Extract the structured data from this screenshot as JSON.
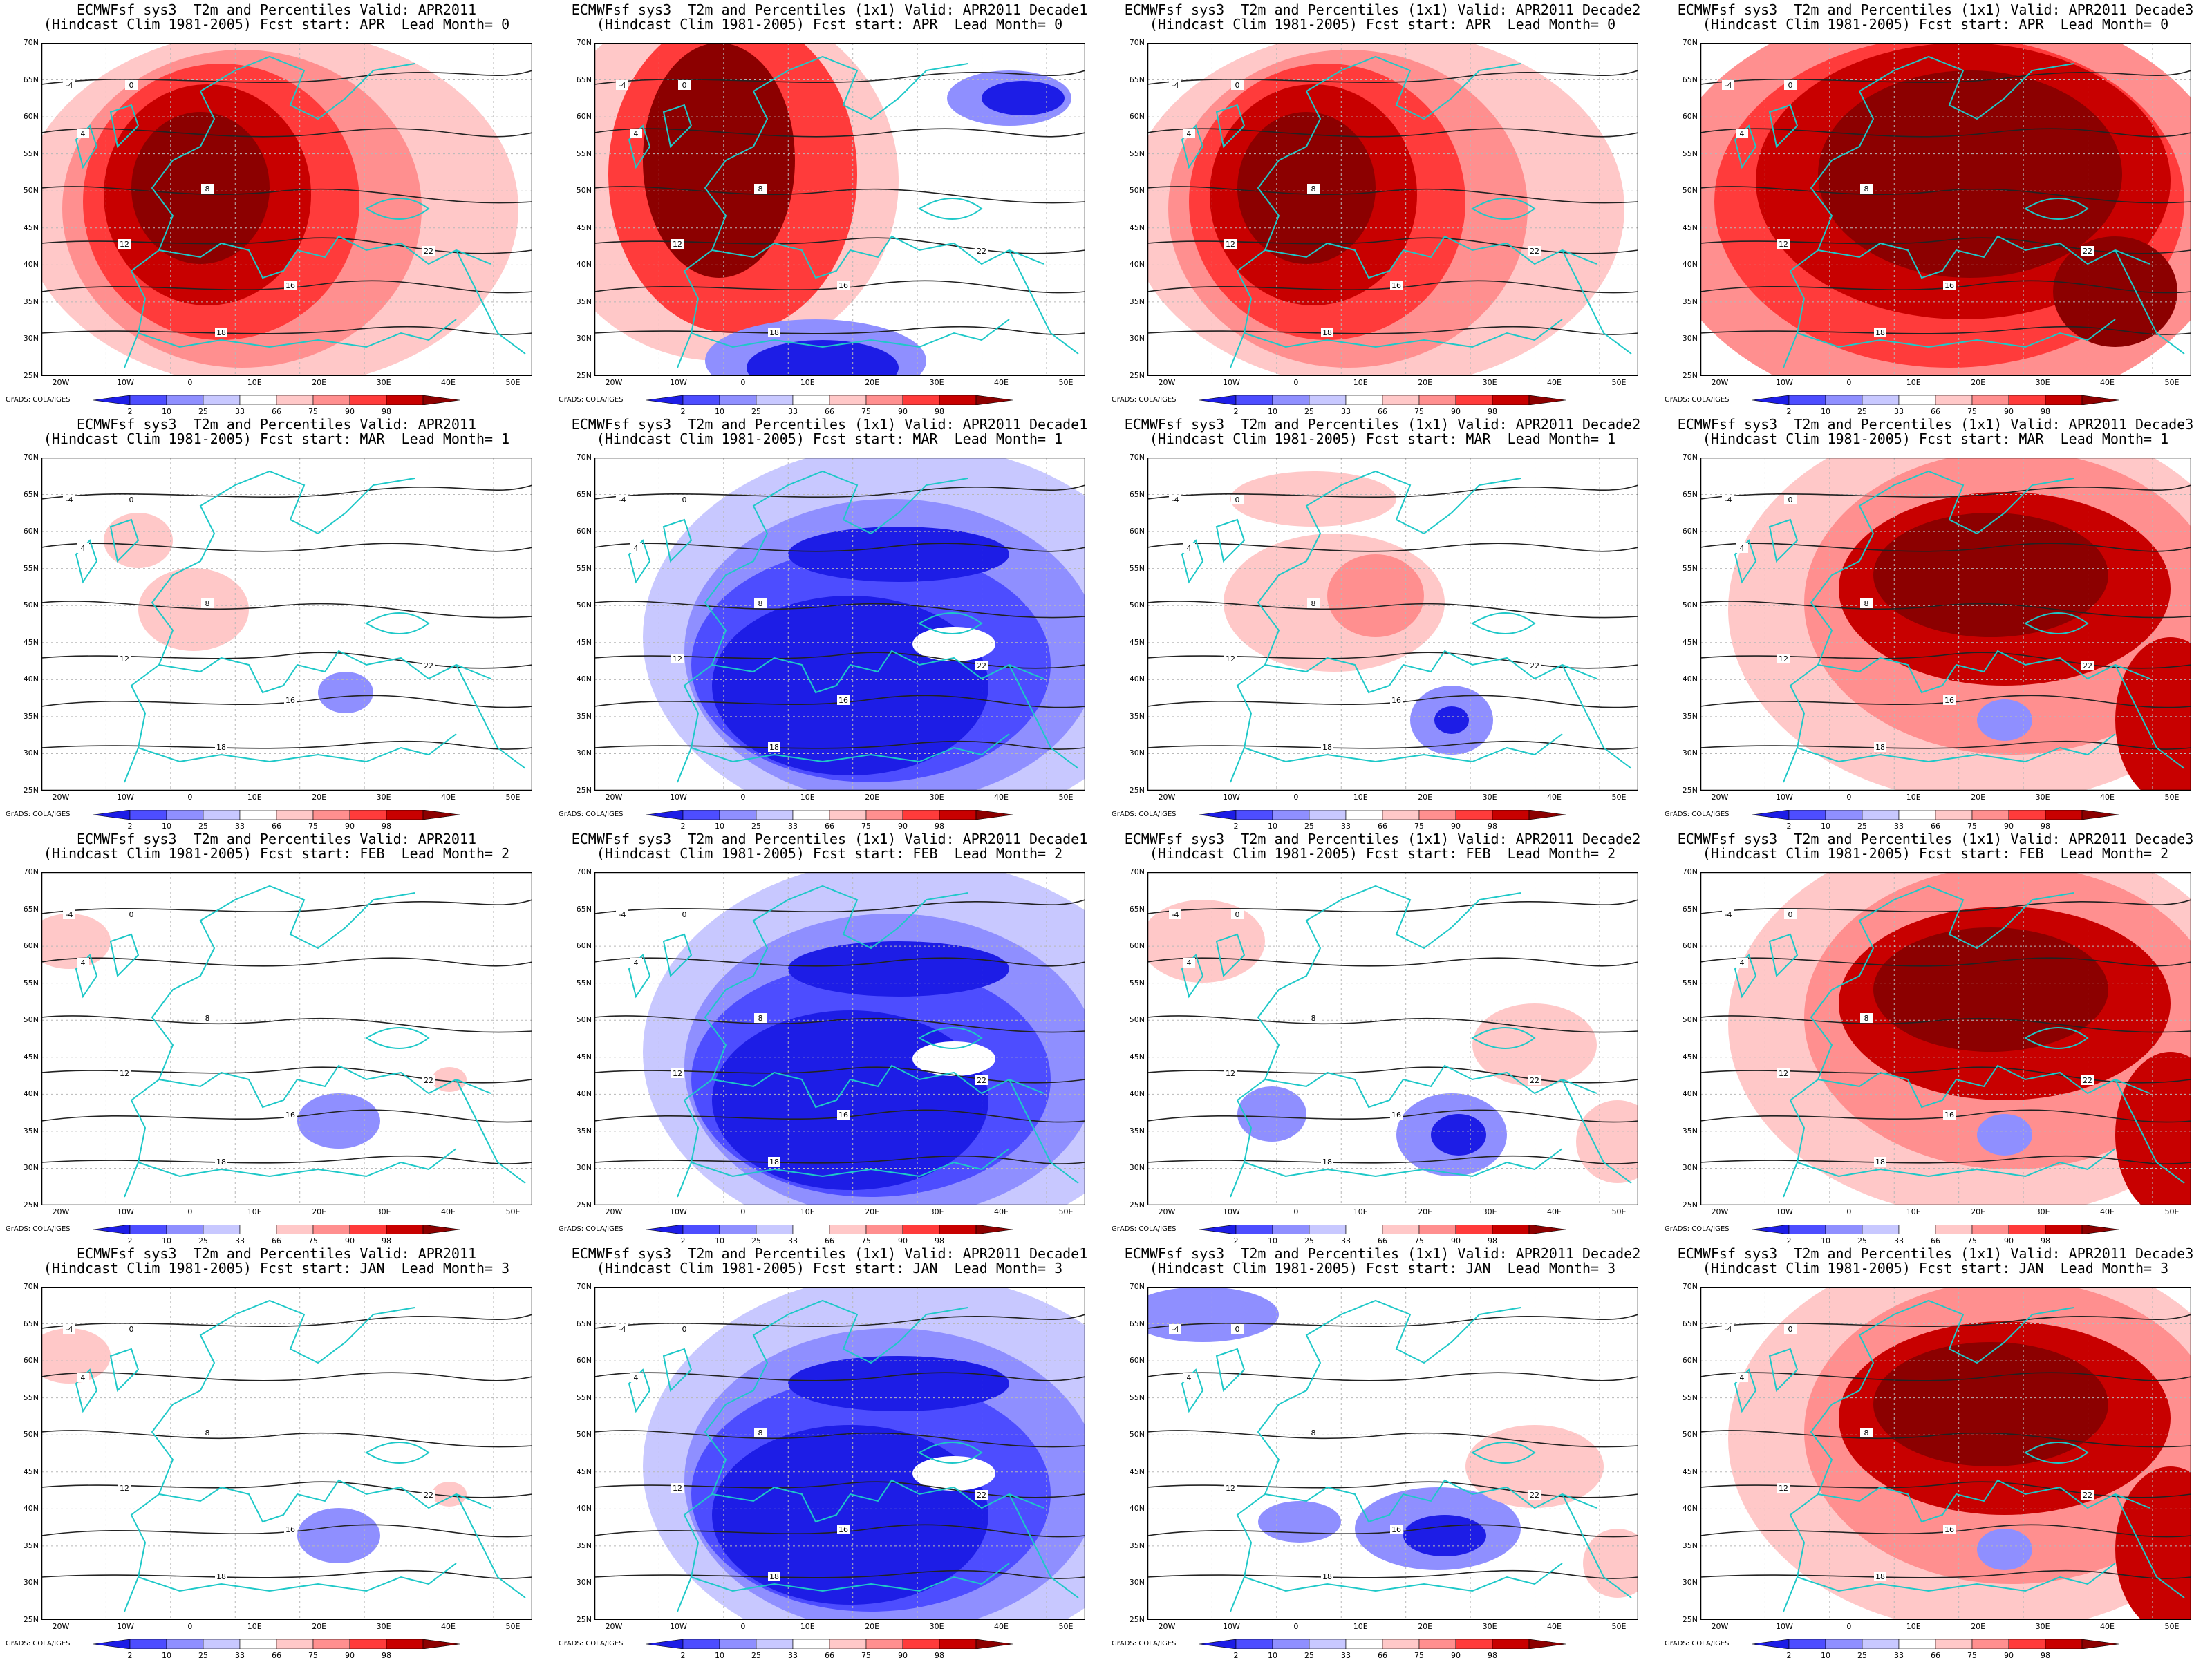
{
  "colorbar": {
    "ticks": [
      "2",
      "10",
      "25",
      "33",
      "66",
      "75",
      "90",
      "98"
    ],
    "colors": [
      "#1d1de6",
      "#4d4dff",
      "#8f8fff",
      "#c8c8ff",
      "#ffffff",
      "#ffc8c8",
      "#ff8f8f",
      "#ff3b3b",
      "#c80000",
      "#8c0000"
    ]
  },
  "credit": "GrADS: COLA/IGES",
  "lat_labels": [
    "70N",
    "65N",
    "60N",
    "55N",
    "50N",
    "45N",
    "40N",
    "35N",
    "30N",
    "25N"
  ],
  "lon_labels": [
    "20W",
    "10W",
    "0",
    "10E",
    "20E",
    "30E",
    "40E",
    "50E"
  ],
  "contour_labels": [
    "-4",
    "0",
    "4",
    "8",
    "12",
    "16",
    "18",
    "22"
  ],
  "panels": [
    {
      "title1": "ECMWFsf sys3  T2m and Percentiles Valid: APR2011",
      "title2": "(Hindcast Clim 1981-2005) Fcst start: APR  Lead Month= 0",
      "anomaly": "very-warm"
    },
    {
      "title1": "ECMWFsf sys3  T2m and Percentiles (1x1) Valid: APR2011 Decade1",
      "title2": "(Hindcast Clim 1981-2005) Fcst start: APR  Lead Month= 0",
      "anomaly": "warm-west-cold-south"
    },
    {
      "title1": "ECMWFsf sys3  T2m and Percentiles (1x1) Valid: APR2011 Decade2",
      "title2": "(Hindcast Clim 1981-2005) Fcst start: APR  Lead Month= 0",
      "anomaly": "very-warm"
    },
    {
      "title1": "ECMWFsf sys3  T2m and Percentiles (1x1) Valid: APR2011 Decade3",
      "title2": "(Hindcast Clim 1981-2005) Fcst start: APR  Lead Month= 0",
      "anomaly": "extreme-warm"
    },
    {
      "title1": "ECMWFsf sys3  T2m and Percentiles Valid: APR2011",
      "title2": "(Hindcast Clim 1981-2005) Fcst start: MAR  Lead Month= 1",
      "anomaly": "neutral-warm"
    },
    {
      "title1": "ECMWFsf sys3  T2m and Percentiles (1x1) Valid: APR2011 Decade1",
      "title2": "(Hindcast Clim 1981-2005) Fcst start: MAR  Lead Month= 1",
      "anomaly": "cold"
    },
    {
      "title1": "ECMWFsf sys3  T2m and Percentiles (1x1) Valid: APR2011 Decade2",
      "title2": "(Hindcast Clim 1981-2005) Fcst start: MAR  Lead Month= 1",
      "anomaly": "mild-warm"
    },
    {
      "title1": "ECMWFsf sys3  T2m and Percentiles (1x1) Valid: APR2011 Decade3",
      "title2": "(Hindcast Clim 1981-2005) Fcst start: MAR  Lead Month= 1",
      "anomaly": "warm-east"
    },
    {
      "title1": "ECMWFsf sys3  T2m and Percentiles Valid: APR2011",
      "title2": "(Hindcast Clim 1981-2005) Fcst start: FEB  Lead Month= 2",
      "anomaly": "neutral"
    },
    {
      "title1": "ECMWFsf sys3  T2m and Percentiles (1x1) Valid: APR2011 Decade1",
      "title2": "(Hindcast Clim 1981-2005) Fcst start: FEB  Lead Month= 2",
      "anomaly": "cold"
    },
    {
      "title1": "ECMWFsf sys3  T2m and Percentiles (1x1) Valid: APR2011 Decade2",
      "title2": "(Hindcast Clim 1981-2005) Fcst start: FEB  Lead Month= 2",
      "anomaly": "mild-warm-cold-south"
    },
    {
      "title1": "ECMWFsf sys3  T2m and Percentiles (1x1) Valid: APR2011 Decade3",
      "title2": "(Hindcast Clim 1981-2005) Fcst start: FEB  Lead Month= 2",
      "anomaly": "warm-east"
    },
    {
      "title1": "ECMWFsf sys3  T2m and Percentiles Valid: APR2011",
      "title2": "(Hindcast Clim 1981-2005) Fcst start: JAN  Lead Month= 3",
      "anomaly": "neutral"
    },
    {
      "title1": "ECMWFsf sys3  T2m and Percentiles (1x1) Valid: APR2011 Decade1",
      "title2": "(Hindcast Clim 1981-2005) Fcst start: JAN  Lead Month= 3",
      "anomaly": "cold"
    },
    {
      "title1": "ECMWFsf sys3  T2m and Percentiles (1x1) Valid: APR2011 Decade2",
      "title2": "(Hindcast Clim 1981-2005) Fcst start: JAN  Lead Month= 3",
      "anomaly": "mild-cold-south"
    },
    {
      "title1": "ECMWFsf sys3  T2m and Percentiles (1x1) Valid: APR2011 Decade3",
      "title2": "(Hindcast Clim 1981-2005) Fcst start: JAN  Lead Month= 3",
      "anomaly": "warm-east"
    }
  ]
}
